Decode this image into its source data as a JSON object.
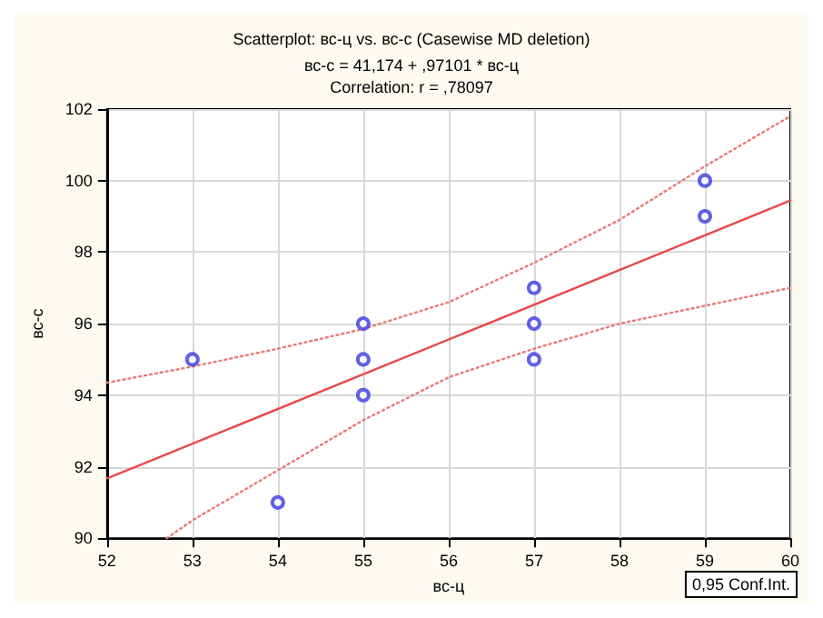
{
  "chart_data": {
    "type": "scatter",
    "title": "Scatterplot: вс-ц vs. вс-с (Casewise MD deletion)",
    "subtitle": "вс-с = 41,174 + ,97101 * вс-ц\nCorrelation: r = ,78097",
    "xlabel": "вс-ц",
    "ylabel": "вс-с",
    "annotations": [
      "0,95 Conf.Int."
    ],
    "series": [
      {
        "color": "#3a3ae0",
        "marker": "circle",
        "x": [
          53,
          54,
          55,
          55,
          55,
          57,
          57,
          57,
          59,
          59
        ],
        "values": [
          95,
          91,
          96,
          95,
          94,
          97,
          96,
          95,
          100,
          99
        ]
      },
      {
        "type": "line",
        "color": "#e84848",
        "marker": "none",
        "line_style": "solid",
        "x": [
          52,
          60
        ],
        "values": [
          91.67,
          99.44
        ]
      },
      {
        "type": "line",
        "color": "#e87878",
        "marker": "none",
        "line_style": "dotted",
        "x": [
          52,
          53,
          54,
          55,
          56,
          57,
          58,
          59,
          60
        ],
        "values": [
          94.35,
          94.8,
          95.3,
          95.85,
          96.6,
          97.7,
          98.9,
          100.4,
          101.8
        ]
      },
      {
        "type": "line",
        "color": "#e87878",
        "marker": "none",
        "line_style": "dotted",
        "x": [
          52.7,
          53,
          54,
          55,
          56,
          57,
          58,
          59,
          60
        ],
        "values": [
          90,
          90.5,
          91.9,
          93.3,
          94.5,
          95.3,
          96,
          96.5,
          97
        ]
      }
    ],
    "xlim": [
      52,
      60
    ],
    "xticks": [
      52,
      53,
      54,
      55,
      56,
      57,
      58,
      59,
      60
    ],
    "ylim": [
      90,
      102
    ],
    "yticks": [
      90,
      92,
      94,
      96,
      98,
      100,
      102
    ],
    "grid": true
  }
}
